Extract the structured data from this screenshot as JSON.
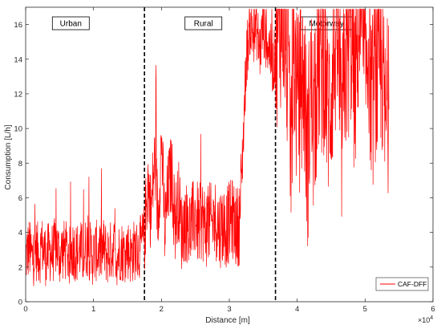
{
  "chart_data": {
    "type": "line",
    "title": "",
    "xlabel": "Distance [m]",
    "ylabel": "Consumption [L/h]",
    "x_exponent_label": "×10",
    "x_exponent_power": "4",
    "xlim": [
      0,
      6
    ],
    "ylim": [
      0,
      17
    ],
    "x_ticks": [
      0,
      1,
      2,
      3,
      4,
      5,
      6
    ],
    "y_ticks": [
      0,
      2,
      4,
      6,
      8,
      10,
      12,
      14,
      16
    ],
    "x_unit_scale": 10000,
    "grid": false,
    "legend_position": "bottom-right",
    "series_color": "#ff0000",
    "boundary_color": "#000000",
    "regions": [
      {
        "label": "Urban",
        "start": 0,
        "end": 1.75
      },
      {
        "label": "Rural",
        "start": 1.75,
        "end": 3.68
      },
      {
        "label": "Motorway",
        "start": 3.68,
        "end": 5.35
      }
    ],
    "boundaries": [
      1.75,
      3.68
    ],
    "series": [
      {
        "name": "CAF-DFF",
        "x_end": 5.35,
        "x": [
          0.0,
          0.05,
          0.1,
          0.15,
          0.2,
          0.25,
          0.3,
          0.35,
          0.4,
          0.45,
          0.5,
          0.55,
          0.6,
          0.65,
          0.7,
          0.75,
          0.8,
          0.85,
          0.9,
          0.95,
          1.0,
          1.05,
          1.1,
          1.15,
          1.2,
          1.25,
          1.3,
          1.35,
          1.4,
          1.45,
          1.5,
          1.55,
          1.6,
          1.65,
          1.7,
          1.75,
          1.8,
          1.85,
          1.9,
          1.95,
          2.0,
          2.05,
          2.1,
          2.15,
          2.2,
          2.25,
          2.3,
          2.35,
          2.4,
          2.45,
          2.5,
          2.55,
          2.6,
          2.65,
          2.7,
          2.75,
          2.8,
          2.85,
          2.9,
          2.95,
          3.0,
          3.05,
          3.1,
          3.15,
          3.2,
          3.25,
          3.3,
          3.35,
          3.4,
          3.45,
          3.5,
          3.55,
          3.6,
          3.65,
          3.7,
          3.75,
          3.8,
          3.85,
          3.9,
          3.95,
          4.0,
          4.05,
          4.1,
          4.15,
          4.2,
          4.25,
          4.3,
          4.35,
          4.4,
          4.45,
          4.5,
          4.55,
          4.6,
          4.65,
          4.7,
          4.75,
          4.8,
          4.85,
          4.9,
          4.95,
          5.0,
          5.05,
          5.1,
          5.15,
          5.2,
          5.25,
          5.3,
          5.35
        ],
        "y": [
          2.6,
          3.1,
          2.5,
          3.0,
          2.7,
          3.2,
          2.6,
          2.9,
          2.8,
          3.3,
          2.7,
          3.0,
          2.9,
          2.6,
          3.1,
          2.8,
          3.0,
          2.7,
          3.2,
          2.9,
          2.6,
          3.0,
          2.8,
          3.1,
          2.7,
          2.9,
          3.2,
          2.6,
          3.0,
          2.8,
          3.1,
          2.7,
          3.0,
          2.9,
          3.3,
          3.8,
          7.0,
          5.0,
          8.5,
          4.8,
          9.5,
          4.0,
          6.5,
          7.5,
          4.5,
          6.0,
          4.0,
          4.8,
          4.2,
          4.5,
          5.0,
          4.3,
          4.8,
          4.2,
          4.6,
          4.4,
          4.8,
          4.2,
          4.5,
          4.3,
          4.6,
          4.8,
          4.3,
          4.5,
          9.0,
          14.0,
          16.0,
          15.5,
          15.8,
          14.5,
          16.0,
          15.0,
          14.5,
          13.5,
          15.5,
          16.5,
          16.8,
          14.0,
          8.5,
          15.0,
          11.0,
          12.0,
          13.0,
          8.0,
          12.5,
          9.5,
          14.0,
          13.5,
          14.0,
          11.0,
          12.0,
          14.5,
          15.0,
          9.0,
          13.5,
          14.5,
          15.5,
          12.0,
          16.0,
          15.0,
          13.0,
          15.5,
          11.0,
          13.5,
          12.5,
          13.8,
          10.0,
          12.0
        ]
      }
    ]
  }
}
